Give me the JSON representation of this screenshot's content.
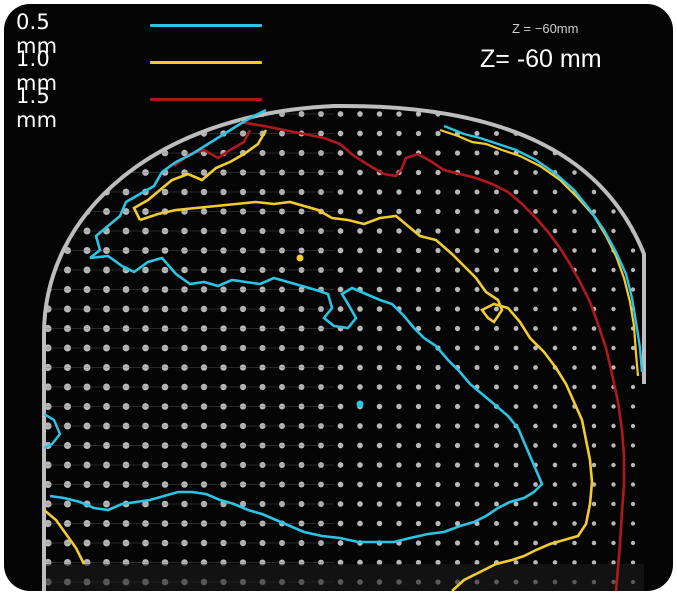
{
  "legend": [
    {
      "label": "0.5 mm",
      "color": "#29c4e6"
    },
    {
      "label": "1.0 mm",
      "color": "#f2cc2f"
    },
    {
      "label": "1.5 mm",
      "color": "#b0191b"
    }
  ],
  "z_label_small": "Z = −60mm",
  "z_label_large": "Z= -60 mm",
  "colors": {
    "background": "#050505",
    "dots": "#d8d8d8",
    "phantom_edge": "#bdbdbd"
  }
}
